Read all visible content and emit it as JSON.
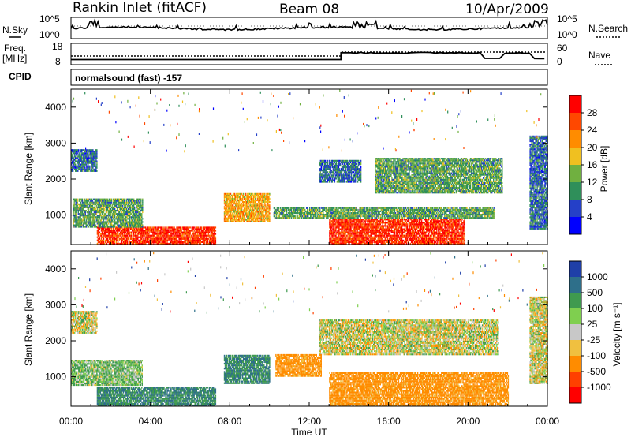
{
  "header": {
    "station": "Rankin Inlet (fitACF)",
    "beam": "Beam 08",
    "date": "10/Apr/2009"
  },
  "noise_panel": {
    "left_label": "N.Sky",
    "right_label": "N.Search",
    "left_ticks": [
      "10^5",
      "10^0"
    ],
    "right_ticks": [
      "10^5",
      "10^0"
    ]
  },
  "freq_panel": {
    "left_label_1": "Freq.",
    "left_label_2": "[MHz]",
    "left_ticks": [
      "18",
      "8"
    ],
    "right_label": "Nave",
    "right_ticks": [
      "60",
      "0"
    ],
    "cpid_label": "CPID",
    "cpid_text": "normalsound (fast) -157"
  },
  "chart_data": [
    {
      "type": "heatmap",
      "name": "power",
      "ylabel": "Slant Range [km]",
      "yticks": [
        "1000",
        "2000",
        "3000",
        "4000"
      ],
      "ylim": [
        180,
        4500
      ],
      "colorbar_label": "Power [dB]",
      "colorbar_ticks": [
        "28",
        "24",
        "20",
        "16",
        "12",
        "8",
        "4"
      ],
      "colorbar_colors": [
        "#ff0000",
        "#ff4800",
        "#ff8c00",
        "#f0c020",
        "#70b040",
        "#2f8f5a",
        "#2540c8",
        "#0000ff"
      ],
      "bands": [
        {
          "t": [
            1.3,
            7.3
          ],
          "r": [
            180,
            650
          ],
          "level": 28
        },
        {
          "t": [
            0.1,
            3.6
          ],
          "r": [
            650,
            1450
          ],
          "level": 12
        },
        {
          "t": [
            0.0,
            1.3
          ],
          "r": [
            2200,
            2800
          ],
          "level": 8
        },
        {
          "t": [
            7.7,
            10.0
          ],
          "r": [
            800,
            1600
          ],
          "level": 20
        },
        {
          "t": [
            13.0,
            19.8
          ],
          "r": [
            180,
            900
          ],
          "level": 28
        },
        {
          "t": [
            10.2,
            21.3
          ],
          "r": [
            900,
            1200
          ],
          "level": 12
        },
        {
          "t": [
            15.3,
            21.7
          ],
          "r": [
            1600,
            2550
          ],
          "level": 12
        },
        {
          "t": [
            12.5,
            14.6
          ],
          "r": [
            1900,
            2500
          ],
          "level": 8
        },
        {
          "t": [
            23.1,
            24.0
          ],
          "r": [
            600,
            3200
          ],
          "level": 8
        }
      ]
    },
    {
      "type": "heatmap",
      "name": "velocity",
      "ylabel": "Slant Range [km]",
      "yticks": [
        "1000",
        "2000",
        "3000",
        "4000"
      ],
      "ylim": [
        180,
        4500
      ],
      "colorbar_label": "Velocity [m s⁻¹]",
      "colorbar_ticks": [
        "1000",
        "500",
        "100",
        "25",
        "-25",
        "-100",
        "-500",
        "-1000"
      ],
      "colorbar_colors": [
        "#1f3fa8",
        "#2e6f8a",
        "#3f9a4f",
        "#7fcf4f",
        "#c8c8c8",
        "#f0c040",
        "#ff8c00",
        "#ff4000",
        "#ff0000"
      ],
      "bands": [
        {
          "t": [
            0.0,
            3.6
          ],
          "r": [
            750,
            1450
          ],
          "level": 100
        },
        {
          "t": [
            1.3,
            7.3
          ],
          "r": [
            180,
            700
          ],
          "level": 500
        },
        {
          "t": [
            0.0,
            1.3
          ],
          "r": [
            2200,
            2800
          ],
          "level": 0
        },
        {
          "t": [
            7.7,
            10.0
          ],
          "r": [
            800,
            1600
          ],
          "level": 500
        },
        {
          "t": [
            13.0,
            22.0
          ],
          "r": [
            180,
            1100
          ],
          "level": -200
        },
        {
          "t": [
            12.5,
            21.5
          ],
          "r": [
            1600,
            2550
          ],
          "level": 0
        },
        {
          "t": [
            10.3,
            12.6
          ],
          "r": [
            1000,
            1600
          ],
          "level": -200
        },
        {
          "t": [
            23.1,
            24.0
          ],
          "r": [
            800,
            3200
          ],
          "level": 0
        }
      ]
    }
  ],
  "time_axis": {
    "ticks": [
      "00:00",
      "04:00",
      "08:00",
      "12:00",
      "16:00",
      "20:00",
      "00:00"
    ],
    "xlabel": "Time UT"
  }
}
